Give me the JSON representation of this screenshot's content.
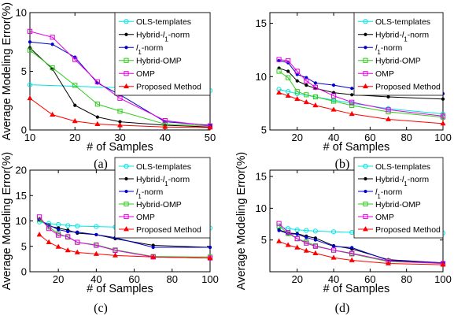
{
  "chart_data": [
    {
      "type": "line",
      "panel": "(a)",
      "xlabel": "# of Samples",
      "ylabel": "Average Modeling Error(%)",
      "xlim": [
        10,
        50
      ],
      "ylim": [
        0,
        10
      ],
      "xticks": [
        10,
        20,
        30,
        40,
        50
      ],
      "yticks": [
        0,
        5,
        10
      ],
      "legend": "top-right",
      "series": [
        {
          "name": "OLS-templates",
          "x": [
            10,
            50
          ],
          "y": [
            3.85,
            3.35
          ]
        },
        {
          "name": "Hybrid-l1-norm",
          "x": [
            10,
            15,
            20,
            25,
            30,
            40,
            50
          ],
          "y": [
            7.0,
            5.2,
            2.1,
            1.1,
            0.7,
            0.4,
            0.25
          ]
        },
        {
          "name": "l1-norm",
          "x": [
            10,
            15,
            20,
            25,
            30,
            40,
            50
          ],
          "y": [
            7.5,
            7.3,
            6.2,
            4.0,
            3.0,
            0.7,
            0.4
          ]
        },
        {
          "name": "Hybrid-OMP",
          "x": [
            10,
            15,
            20,
            25,
            30,
            40,
            50
          ],
          "y": [
            6.8,
            5.3,
            3.8,
            2.2,
            1.6,
            0.5,
            0.35
          ]
        },
        {
          "name": "OMP",
          "x": [
            10,
            15,
            20,
            25,
            30,
            40,
            50
          ],
          "y": [
            8.4,
            7.9,
            6.0,
            4.1,
            2.7,
            0.8,
            0.35
          ]
        },
        {
          "name": "Proposed Method",
          "x": [
            10,
            15,
            20,
            25,
            30,
            40,
            50
          ],
          "y": [
            2.7,
            1.3,
            0.75,
            0.5,
            0.4,
            0.25,
            0.2
          ]
        }
      ]
    },
    {
      "type": "line",
      "panel": "(b)",
      "xlabel": "# of Samples",
      "ylabel": "",
      "xlim": [
        5,
        100
      ],
      "ylim": [
        5,
        16
      ],
      "xticks": [
        20,
        40,
        60,
        80,
        100
      ],
      "yticks": [
        5,
        10,
        15
      ],
      "legend": "top-right",
      "series": [
        {
          "name": "OLS-templates",
          "x": [
            10,
            15,
            20,
            30,
            40,
            50,
            70,
            100
          ],
          "y": [
            8.8,
            8.6,
            8.4,
            8.1,
            7.8,
            7.5,
            7.0,
            6.5
          ]
        },
        {
          "name": "Hybrid-l1-norm",
          "x": [
            10,
            15,
            20,
            25,
            30,
            40,
            50,
            70,
            100
          ],
          "y": [
            10.8,
            10.5,
            9.6,
            9.2,
            8.9,
            8.5,
            8.3,
            8.1,
            7.9
          ]
        },
        {
          "name": "l1-norm",
          "x": [
            10,
            15,
            20,
            25,
            30,
            40,
            50,
            70,
            100
          ],
          "y": [
            11.5,
            11.3,
            10.2,
            9.9,
            9.4,
            9.2,
            8.9,
            8.6,
            8.4
          ]
        },
        {
          "name": "Hybrid-OMP",
          "x": [
            10,
            15,
            20,
            25,
            30,
            40,
            50,
            70,
            100
          ],
          "y": [
            10.5,
            9.9,
            8.6,
            8.3,
            8.1,
            7.7,
            7.3,
            6.7,
            6.2
          ]
        },
        {
          "name": "OMP",
          "x": [
            10,
            15,
            20,
            25,
            30,
            40,
            50,
            70,
            100
          ],
          "y": [
            11.6,
            11.5,
            10.5,
            9.6,
            9.0,
            8.2,
            7.6,
            6.9,
            6.3
          ]
        },
        {
          "name": "Proposed Method",
          "x": [
            10,
            15,
            20,
            25,
            30,
            40,
            50,
            70,
            100
          ],
          "y": [
            8.5,
            8.2,
            7.9,
            7.6,
            7.3,
            6.9,
            6.5,
            6.0,
            5.6
          ]
        }
      ]
    },
    {
      "type": "line",
      "panel": "(c)",
      "xlabel": "# of Samples",
      "ylabel": "Average Modeling Error(%)",
      "xlim": [
        5,
        100
      ],
      "ylim": [
        0,
        20
      ],
      "xticks": [
        20,
        40,
        60,
        80,
        100
      ],
      "yticks": [
        0,
        5,
        10,
        15,
        20
      ],
      "legend": "top-right",
      "series": [
        {
          "name": "OLS-templates",
          "x": [
            10,
            15,
            20,
            25,
            30,
            40,
            50,
            70,
            100
          ],
          "y": [
            9.8,
            9.5,
            9.3,
            9.1,
            9.0,
            8.9,
            8.8,
            8.7,
            8.6
          ]
        },
        {
          "name": "Hybrid-l1-norm",
          "x": [
            10,
            15,
            20,
            25,
            30,
            40,
            50,
            70,
            100
          ],
          "y": [
            10.3,
            9.0,
            8.6,
            8.2,
            7.6,
            7.3,
            6.5,
            5.2,
            4.8
          ]
        },
        {
          "name": "l1-norm",
          "x": [
            10,
            15,
            20,
            25,
            30,
            40,
            50,
            70,
            100
          ],
          "y": [
            10.2,
            9.2,
            8.3,
            7.9,
            7.8,
            7.3,
            6.7,
            4.8,
            4.8
          ]
        },
        {
          "name": "Hybrid-OMP",
          "x": [
            10,
            15,
            20,
            25,
            30,
            40,
            50,
            70,
            100
          ],
          "y": [
            10.3,
            8.8,
            7.5,
            6.8,
            5.8,
            5.3,
            4.3,
            3.0,
            2.9
          ]
        },
        {
          "name": "OMP",
          "x": [
            10,
            15,
            20,
            25,
            30,
            40,
            50,
            70,
            100
          ],
          "y": [
            10.8,
            8.5,
            7.2,
            6.9,
            5.8,
            5.2,
            4.2,
            2.9,
            2.7
          ]
        },
        {
          "name": "Proposed Method",
          "x": [
            10,
            15,
            20,
            25,
            30,
            40,
            50,
            70,
            100
          ],
          "y": [
            7.3,
            5.8,
            4.9,
            4.2,
            3.8,
            3.5,
            3.2,
            2.9,
            2.7
          ]
        }
      ]
    },
    {
      "type": "line",
      "panel": "(d)",
      "xlabel": "# of Samples",
      "ylabel": "Average Modeling Error(%)",
      "xlim": [
        5,
        100
      ],
      "ylim": [
        0,
        16
      ],
      "xticks": [
        20,
        40,
        60,
        80,
        100
      ],
      "yticks": [
        5,
        10,
        15
      ],
      "legend": "top-right",
      "series": [
        {
          "name": "OLS-templates",
          "x": [
            10,
            15,
            20,
            25,
            30,
            40,
            50,
            70,
            100
          ],
          "y": [
            7.0,
            6.8,
            6.6,
            6.5,
            6.4,
            6.3,
            6.2,
            6.2,
            6.1
          ]
        },
        {
          "name": "Hybrid-l1-norm",
          "x": [
            10,
            15,
            20,
            25,
            30,
            40,
            50,
            70,
            100
          ],
          "y": [
            6.6,
            6.1,
            6.0,
            5.6,
            5.3,
            4.1,
            3.6,
            1.9,
            1.4
          ]
        },
        {
          "name": "l1-norm",
          "x": [
            10,
            15,
            20,
            25,
            30,
            40,
            50,
            70,
            100
          ],
          "y": [
            6.5,
            6.0,
            5.9,
            5.4,
            5.0,
            4.0,
            3.8,
            1.8,
            1.4
          ]
        },
        {
          "name": "Hybrid-OMP",
          "x": [
            10,
            15,
            20,
            25,
            30,
            40,
            50,
            70,
            100
          ],
          "y": [
            7.2,
            6.0,
            5.2,
            4.7,
            4.1,
            3.4,
            2.8,
            1.6,
            1.3
          ]
        },
        {
          "name": "OMP",
          "x": [
            10,
            15,
            20,
            25,
            30,
            40,
            50,
            70,
            100
          ],
          "y": [
            7.6,
            6.2,
            5.2,
            4.5,
            4.0,
            3.4,
            2.9,
            1.7,
            1.3
          ]
        },
        {
          "name": "Proposed Method",
          "x": [
            10,
            15,
            20,
            25,
            30,
            40,
            50,
            70,
            100
          ],
          "y": [
            4.8,
            4.2,
            3.8,
            3.3,
            2.9,
            2.2,
            1.8,
            1.3,
            1.1
          ]
        }
      ]
    }
  ],
  "series_style": {
    "OLS-templates": {
      "color": "#00e5e5",
      "marker": "circle"
    },
    "Hybrid-l1-norm": {
      "color": "#000000",
      "marker": "dot"
    },
    "l1-norm": {
      "color": "#0000d0",
      "marker": "dot"
    },
    "Hybrid-OMP": {
      "color": "#2ecc1a",
      "marker": "square"
    },
    "OMP": {
      "color": "#e000e0",
      "marker": "square"
    },
    "Proposed Method": {
      "color": "#ff0000",
      "marker": "triangle"
    }
  }
}
